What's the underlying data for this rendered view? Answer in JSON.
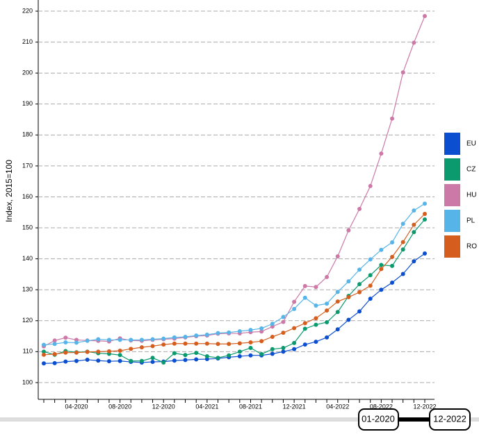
{
  "chart_data": {
    "type": "line",
    "y_label": "Index, 2015=100",
    "categories": [
      null,
      null,
      null,
      "04-2020",
      null,
      null,
      null,
      "08-2020",
      null,
      null,
      null,
      "12-2020",
      null,
      null,
      null,
      "04-2021",
      null,
      null,
      null,
      "08-2021",
      null,
      null,
      null,
      "12-2021",
      null,
      null,
      null,
      "04-2022",
      null,
      null,
      null,
      "08-2022",
      null,
      null,
      null,
      "12-2022"
    ],
    "ylim": [
      94.6,
      223.6
    ],
    "yticks": [
      100,
      110,
      120,
      130,
      140,
      150,
      160,
      170,
      180,
      190,
      200,
      210,
      220
    ],
    "grid": true,
    "legend": "right",
    "series": [
      {
        "name": "EU",
        "color": "#0b4ed0",
        "values": [
          106.2,
          106.3,
          106.8,
          107,
          107.4,
          107.1,
          106.9,
          107,
          106.7,
          106.5,
          106.7,
          106.8,
          107.1,
          107.3,
          107.5,
          107.6,
          107.8,
          108.2,
          108.5,
          108.8,
          108.8,
          109.3,
          110,
          110.8,
          112.3,
          113.2,
          114.6,
          117.2,
          120.3,
          123,
          127.1,
          130,
          132.3,
          135.1,
          139.2,
          141.7
        ]
      },
      {
        "name": "CZ",
        "color": "#0a9a6e",
        "values": [
          110,
          109,
          110.2,
          109.8,
          110,
          109.5,
          109.3,
          108.9,
          107,
          107,
          108,
          106.5,
          109.5,
          108.9,
          109.6,
          108.5,
          108,
          108.8,
          110,
          111.2,
          109.2,
          110.8,
          111.2,
          112.8,
          117.4,
          118.7,
          119.5,
          122.8,
          128,
          131.8,
          134.7,
          138,
          137.7,
          143,
          148.6,
          152.7
        ]
      },
      {
        "name": "HU",
        "color": "#cc79a7",
        "values": [
          111.7,
          113.6,
          114.5,
          113.8,
          113.6,
          113.5,
          113.3,
          114.3,
          113.6,
          113.5,
          113.8,
          114,
          114.2,
          114.6,
          115,
          115.2,
          115.8,
          115.9,
          115.9,
          116.3,
          116.5,
          118.1,
          119.6,
          126.1,
          131.2,
          130.9,
          134.1,
          140.8,
          149.2,
          156.1,
          163.5,
          174,
          185.3,
          200.2,
          209.8,
          218.4
        ]
      },
      {
        "name": "PL",
        "color": "#56b4e9",
        "values": [
          112.2,
          112.5,
          113,
          112.9,
          113.5,
          114,
          113.8,
          113.8,
          113.8,
          113.8,
          114,
          114.2,
          114.6,
          114.8,
          115.2,
          115.5,
          116,
          116.2,
          116.6,
          117,
          117.5,
          119,
          121.2,
          123.8,
          127.4,
          124.9,
          125.5,
          129.3,
          132.7,
          136.5,
          139.8,
          142.9,
          145.3,
          151.3,
          155.6,
          157.8
        ]
      },
      {
        "name": "RO",
        "color": "#d55e1f",
        "values": [
          109,
          109.2,
          109.7,
          109.7,
          109.9,
          110,
          110.1,
          110.3,
          110.9,
          111.4,
          111.8,
          112.3,
          112.6,
          112.6,
          112.6,
          112.6,
          112.5,
          112.5,
          112.7,
          113,
          113.4,
          114.8,
          116.1,
          117.6,
          119.2,
          120.8,
          123.3,
          126.2,
          127.6,
          129.2,
          131.3,
          136.7,
          140.6,
          145.4,
          151,
          154.5
        ]
      }
    ]
  },
  "slider": {
    "start": "01-2020",
    "end": "12-2022"
  }
}
